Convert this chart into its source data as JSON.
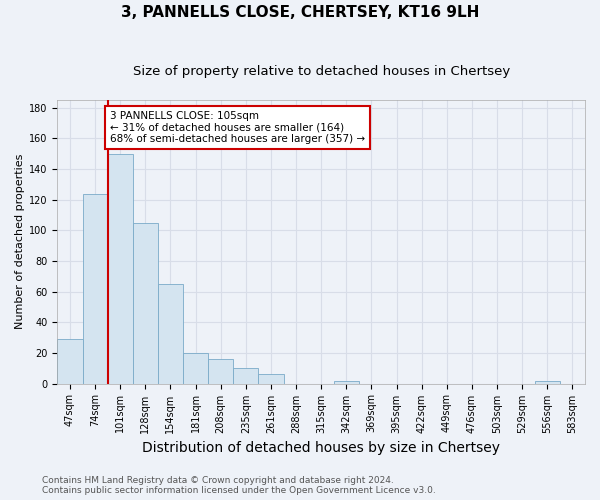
{
  "title1": "3, PANNELLS CLOSE, CHERTSEY, KT16 9LH",
  "title2": "Size of property relative to detached houses in Chertsey",
  "xlabel": "Distribution of detached houses by size in Chertsey",
  "ylabel": "Number of detached properties",
  "bin_labels": [
    "47sqm",
    "74sqm",
    "101sqm",
    "128sqm",
    "154sqm",
    "181sqm",
    "208sqm",
    "235sqm",
    "261sqm",
    "288sqm",
    "315sqm",
    "342sqm",
    "369sqm",
    "395sqm",
    "422sqm",
    "449sqm",
    "476sqm",
    "503sqm",
    "529sqm",
    "556sqm",
    "583sqm"
  ],
  "bar_heights": [
    29,
    124,
    150,
    105,
    65,
    20,
    16,
    10,
    6,
    0,
    0,
    2,
    0,
    0,
    0,
    0,
    0,
    0,
    0,
    2,
    0
  ],
  "bar_color": "#d4e4f0",
  "bar_edge_color": "#7aaac8",
  "red_line_x": 1.5,
  "red_line_color": "#cc0000",
  "annotation_text": "3 PANNELLS CLOSE: 105sqm\n← 31% of detached houses are smaller (164)\n68% of semi-detached houses are larger (357) →",
  "annotation_box_color": "#ffffff",
  "annotation_box_edge": "#cc0000",
  "ylim": [
    0,
    185
  ],
  "yticks": [
    0,
    20,
    40,
    60,
    80,
    100,
    120,
    140,
    160,
    180
  ],
  "footnote1": "Contains HM Land Registry data © Crown copyright and database right 2024.",
  "footnote2": "Contains public sector information licensed under the Open Government Licence v3.0.",
  "bg_color": "#eef2f8",
  "grid_color": "#d8dde8",
  "title1_fontsize": 11,
  "title2_fontsize": 9.5,
  "xlabel_fontsize": 10,
  "ylabel_fontsize": 8,
  "tick_fontsize": 7,
  "annotation_fontsize": 7.5,
  "footnote_fontsize": 6.5
}
